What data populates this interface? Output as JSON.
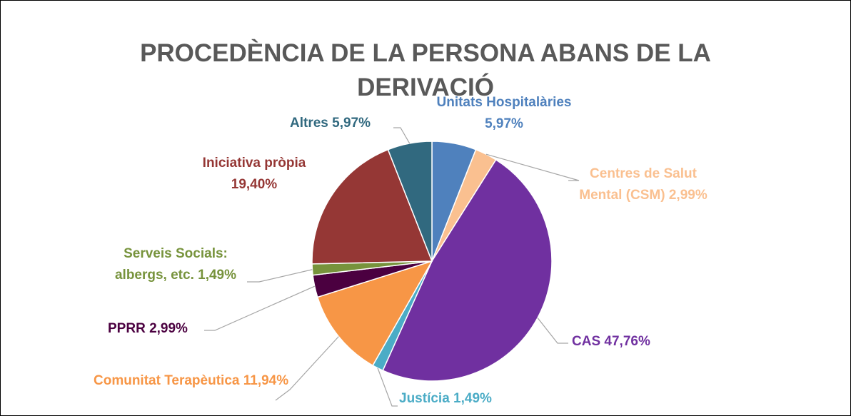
{
  "chart_data": {
    "type": "pie",
    "title": "PROCEDÈNCIA DE LA PERSONA ABANS DE LA DERIVACIÓ",
    "categories": [
      "Unitats Hospitalàries",
      "Centres de Salut Mental (CSM)",
      "CAS",
      "Justícia",
      "Comunitat Terapèutica",
      "PPRR",
      "Serveis Socials: albergs, etc.",
      "Iniciativa pròpia",
      "Altres"
    ],
    "values": [
      5.97,
      2.99,
      47.76,
      1.49,
      11.94,
      2.99,
      1.49,
      19.4,
      5.97
    ],
    "value_labels": [
      "5,97%",
      "2,99%",
      "47,76%",
      "1,49%",
      "11,94%",
      "2,99%",
      "1,49%",
      "19,40%",
      "5,97%"
    ],
    "colors": [
      "#4f81bd",
      "#fac090",
      "#7030a0",
      "#4bacc6",
      "#f79646",
      "#4b0040",
      "#77933c",
      "#953735",
      "#31697f"
    ]
  }
}
